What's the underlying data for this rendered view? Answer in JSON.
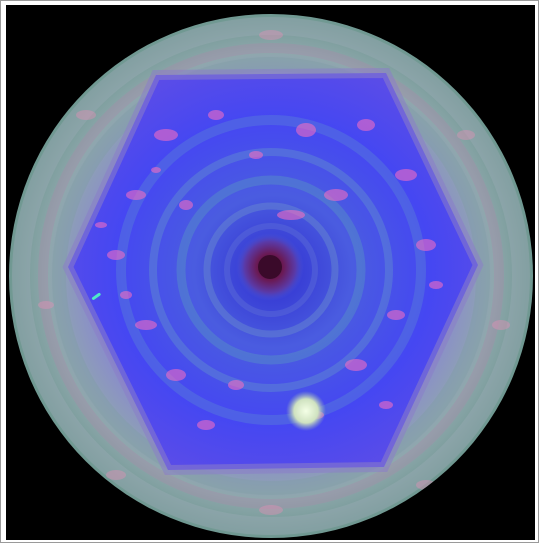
{
  "image": {
    "subject": "planet-polar-vortex",
    "colors": {
      "border": "#9a9a9a",
      "space": "#000000",
      "limb": "#7fa8a0",
      "outer_band": "#8fa7ad",
      "hexagon": "#3a3ef0",
      "clouds": "#ff6fbf",
      "eye": "#5a1040",
      "storm": "#e8f0d0"
    }
  }
}
